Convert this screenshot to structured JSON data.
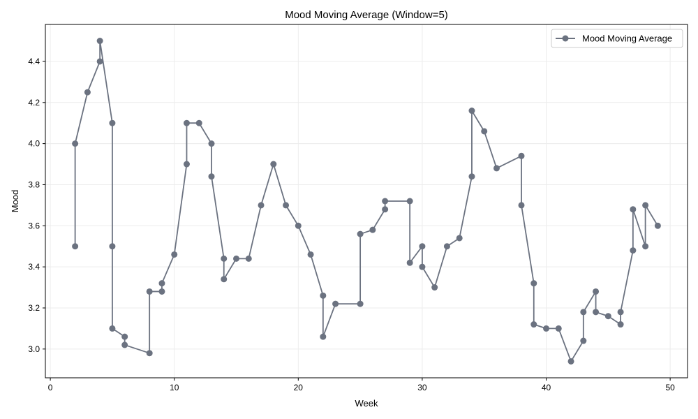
{
  "chart_data": {
    "type": "line",
    "title": "Mood Moving Average (Window=5)",
    "xlabel": "Week",
    "ylabel": "Mood",
    "xlim": [
      -0.4,
      51.4
    ],
    "ylim": [
      2.86,
      4.58
    ],
    "xticks": [
      0,
      10,
      20,
      30,
      40,
      50
    ],
    "yticks": [
      3.0,
      3.2,
      3.4,
      3.6,
      3.8,
      4.0,
      4.2,
      4.4
    ],
    "grid": true,
    "legend_position": "top-right",
    "series": [
      {
        "name": "Mood Moving Average",
        "color": "#6b7280",
        "marker": "circle",
        "x": [
          2,
          2,
          3,
          4,
          4,
          5,
          5,
          5,
          6,
          6,
          8,
          8,
          9,
          9,
          10,
          11,
          11,
          12,
          13,
          13,
          14,
          14,
          15,
          16,
          17,
          18,
          19,
          20,
          21,
          22,
          22,
          23,
          25,
          25,
          26,
          27,
          27,
          29,
          29,
          30,
          30,
          31,
          32,
          33,
          34,
          34,
          35,
          36,
          38,
          38,
          39,
          39,
          40,
          41,
          42,
          43,
          43,
          44,
          44,
          45,
          46,
          46,
          47,
          47,
          48,
          48,
          49
        ],
        "y": [
          3.5,
          4.0,
          4.25,
          4.4,
          4.5,
          4.1,
          3.5,
          3.1,
          3.06,
          3.02,
          2.98,
          3.28,
          3.28,
          3.32,
          3.46,
          3.9,
          4.1,
          4.1,
          4.0,
          3.84,
          3.44,
          3.34,
          3.44,
          3.44,
          3.7,
          3.9,
          3.7,
          3.6,
          3.46,
          3.26,
          3.06,
          3.22,
          3.22,
          3.56,
          3.58,
          3.68,
          3.72,
          3.72,
          3.42,
          3.5,
          3.4,
          3.3,
          3.5,
          3.54,
          3.84,
          4.16,
          4.06,
          3.88,
          3.94,
          3.7,
          3.32,
          3.12,
          3.1,
          3.1,
          2.94,
          3.04,
          3.18,
          3.28,
          3.18,
          3.16,
          3.12,
          3.18,
          3.48,
          3.68,
          3.5,
          3.7,
          3.6
        ]
      }
    ]
  }
}
